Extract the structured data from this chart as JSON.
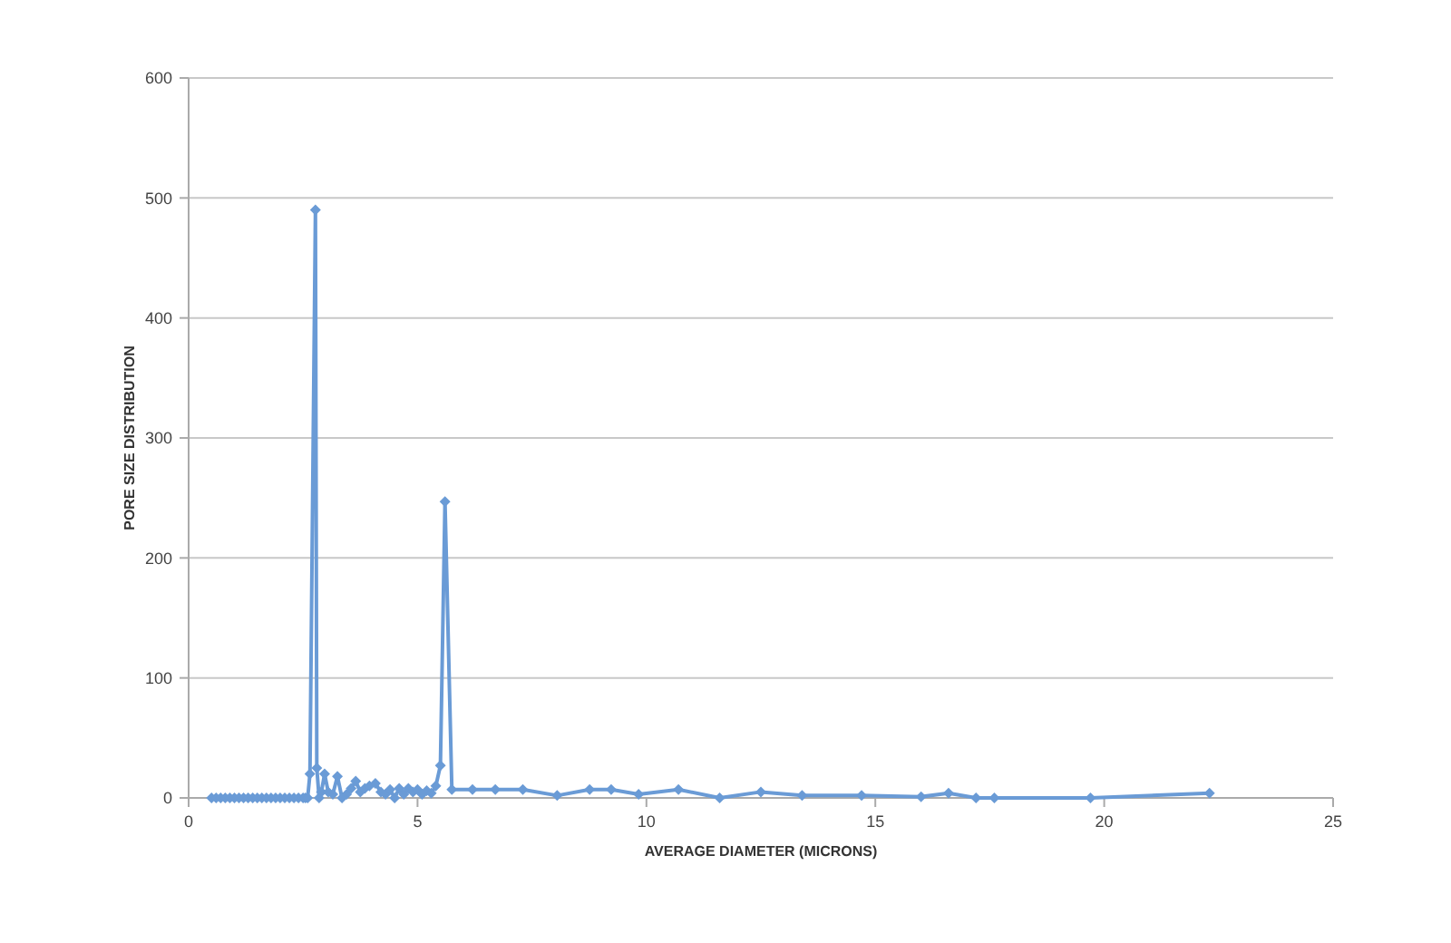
{
  "chart_data": {
    "type": "line",
    "xlabel": "AVERAGE DIAMETER (MICRONS)",
    "ylabel": "PORE SIZE DISTRIBUTION",
    "xlim": [
      0,
      25
    ],
    "xticks": [
      0,
      5,
      10,
      15,
      20,
      25
    ],
    "ylim": [
      0,
      600
    ],
    "yticks": [
      0,
      100,
      200,
      300,
      400,
      500,
      600
    ],
    "grid": "y",
    "marker": "diamond",
    "line_style": "solid",
    "series": [
      {
        "color": "#6a9bd6",
        "x": [
          0.5,
          0.6,
          0.7,
          0.8,
          0.9,
          1.0,
          1.1,
          1.2,
          1.3,
          1.4,
          1.5,
          1.6,
          1.7,
          1.8,
          1.9,
          2.0,
          2.1,
          2.2,
          2.3,
          2.4,
          2.5,
          2.55,
          2.6,
          2.65,
          2.77,
          2.8,
          2.85,
          2.9,
          2.97,
          3.05,
          3.15,
          3.25,
          3.35,
          3.45,
          3.55,
          3.65,
          3.75,
          3.85,
          3.95,
          4.08,
          4.2,
          4.3,
          4.4,
          4.5,
          4.6,
          4.7,
          4.8,
          4.9,
          5.0,
          5.1,
          5.2,
          5.3,
          5.4,
          5.5,
          5.6,
          5.75,
          6.2,
          6.7,
          7.3,
          8.05,
          8.76,
          9.23,
          9.83,
          10.7,
          11.6,
          12.5,
          13.4,
          14.7,
          16.0,
          16.6,
          17.2,
          17.6,
          19.7,
          22.3
        ],
        "values": [
          0,
          0,
          0,
          0,
          0,
          0,
          0,
          0,
          0,
          0,
          0,
          0,
          0,
          0,
          0,
          0,
          0,
          0,
          0,
          0,
          0,
          0,
          0,
          20,
          490,
          25,
          0,
          5,
          20,
          5,
          3,
          18,
          0,
          3,
          8,
          14,
          5,
          8,
          10,
          12,
          5,
          3,
          7,
          0,
          8,
          3,
          8,
          5,
          7,
          3,
          6,
          4,
          10,
          27,
          247,
          7,
          7,
          7,
          7,
          2,
          7,
          7,
          3,
          7,
          0,
          5,
          2,
          2,
          1,
          4,
          0,
          0,
          0,
          4
        ]
      }
    ]
  }
}
